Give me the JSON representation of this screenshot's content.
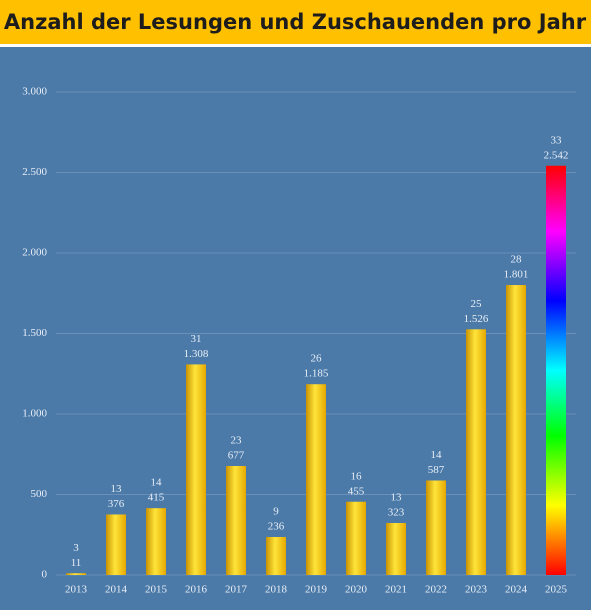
{
  "chart_data": {
    "type": "bar",
    "title": "Anzahl der Lesungen und Zuschauenden pro Jahr",
    "categories": [
      "2013",
      "2014",
      "2015",
      "2016",
      "2017",
      "2018",
      "2019",
      "2020",
      "2021",
      "2022",
      "2023",
      "2024",
      "2025"
    ],
    "values": [
      11,
      376,
      415,
      1308,
      677,
      236,
      1185,
      455,
      323,
      587,
      1526,
      1801,
      2542
    ],
    "value_labels": [
      "11",
      "376",
      "415",
      "1.308",
      "677",
      "236",
      "1.185",
      "455",
      "323",
      "587",
      "1.526",
      "1.801",
      "2.542"
    ],
    "counts": [
      3,
      13,
      14,
      31,
      23,
      9,
      26,
      16,
      13,
      14,
      25,
      28,
      33
    ],
    "bar_styles": [
      "gold",
      "gold",
      "gold",
      "gold",
      "gold",
      "gold",
      "gold",
      "gold",
      "gold",
      "gold",
      "gold",
      "gold",
      "rainbow"
    ],
    "ylim": [
      0,
      3000
    ],
    "yticks": [
      0,
      500,
      {
        "value": 1000,
        "label": "1.000"
      },
      {
        "value": 1500,
        "label": "1.500"
      },
      {
        "value": 2000,
        "label": "2.000"
      },
      {
        "value": 2500,
        "label": "2.500"
      },
      {
        "value": 3000,
        "label": "3.000"
      }
    ],
    "grid": true
  }
}
